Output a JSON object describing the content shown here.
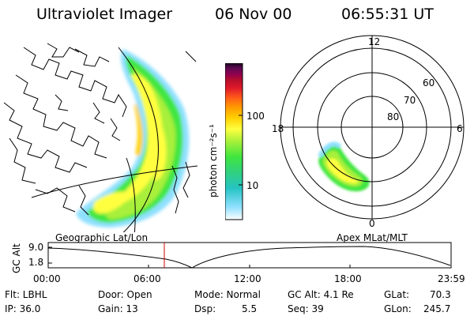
{
  "header": {
    "title": "Ultraviolet Imager",
    "date": "06 Nov 00",
    "time": "06:55:31 UT"
  },
  "colorbar": {
    "unit_label": "photon cm⁻²s⁻¹",
    "ticks": [
      "100",
      "10"
    ],
    "scale": "log",
    "colors": [
      "#ffffff",
      "#8fe0ff",
      "#26c4c4",
      "#30d080",
      "#3fe63f",
      "#a8f03a",
      "#ffff40",
      "#ffd000",
      "#ff9900",
      "#ff5a1a",
      "#e01a2a",
      "#b80f2a",
      "#900050",
      "#5a0a50",
      "#1a0020"
    ]
  },
  "geo_panel": {
    "label": "Geographic Lat/Lon"
  },
  "polar_panel": {
    "label": "Apex MLat/MLT",
    "mlt_labels": [
      "12",
      "18",
      "6",
      "0"
    ],
    "lat_labels": [
      "60",
      "70",
      "80"
    ]
  },
  "altitude_plot": {
    "ylabel": "GC Alt",
    "yticks": [
      "9.0",
      "1.8"
    ],
    "xticks": [
      "00:00",
      "06:00",
      "12:00",
      "18:00",
      "23:59"
    ],
    "current_time_marker": "06:55",
    "marker_color": "#cc0000"
  },
  "info": {
    "flt": "Flt: LBHL",
    "ip": "IP: 36.0",
    "door": "Door: Open",
    "gain": "Gain: 13",
    "mode": "Mode: Normal",
    "dsp_label": "Dsp:",
    "dsp_value": "5.5",
    "gc_alt": "GC Alt: 4.1 Re",
    "seq": "Seq: 39",
    "glat_label": "GLat:",
    "glat_value": "70.3",
    "glon_label": "GLon:",
    "glon_value": "245.7"
  }
}
